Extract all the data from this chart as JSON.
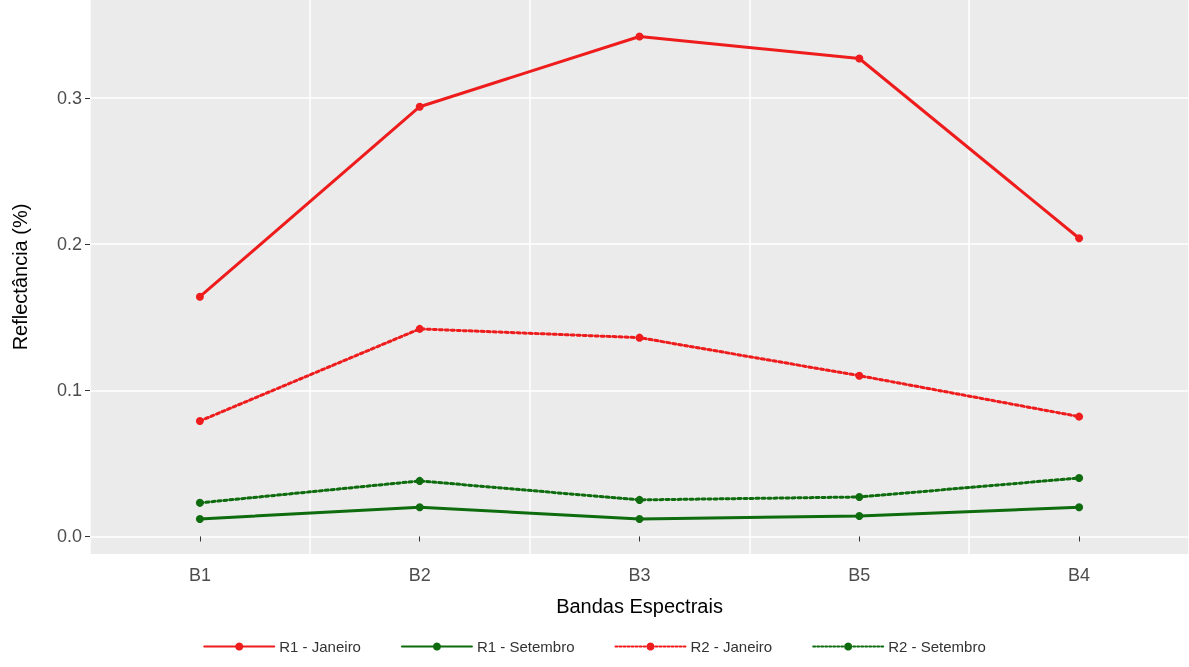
{
  "chart_data": {
    "type": "line",
    "xlabel": "Bandas Espectrais",
    "ylabel": "Reflectância (%)",
    "categories": [
      "B1",
      "B2",
      "B3",
      "B5",
      "B4"
    ],
    "series": [
      {
        "name": "R1 - Janeiro",
        "color": "#ee1c1c",
        "values": [
          0.164,
          0.294,
          0.342,
          0.327,
          0.204
        ],
        "line_style": "solid",
        "marker": "circle"
      },
      {
        "name": "R1 - Setembro",
        "color": "#0e6b0e",
        "values": [
          0.012,
          0.02,
          0.012,
          0.014,
          0.02
        ],
        "line_style": "solid",
        "marker": "circle"
      },
      {
        "name": "R2 - Janeiro",
        "color": "#ee1c1c",
        "values": [
          0.079,
          0.142,
          0.136,
          0.11,
          0.082
        ],
        "line_style": "dotted",
        "marker": "circle"
      },
      {
        "name": "R2 - Setembro",
        "color": "#0e6b0e",
        "values": [
          0.023,
          0.038,
          0.025,
          0.027,
          0.04
        ],
        "line_style": "dotted",
        "marker": "circle"
      }
    ],
    "ylim": [
      -0.012,
      0.367
    ],
    "yticks": [
      {
        "value": 0,
        "label": "0.0"
      },
      {
        "value": 0.1,
        "label": "0.1"
      },
      {
        "value": 0.2,
        "label": "0.2"
      },
      {
        "value": 0.3,
        "label": "0.3"
      }
    ],
    "grid": true,
    "legend": "bottom"
  }
}
